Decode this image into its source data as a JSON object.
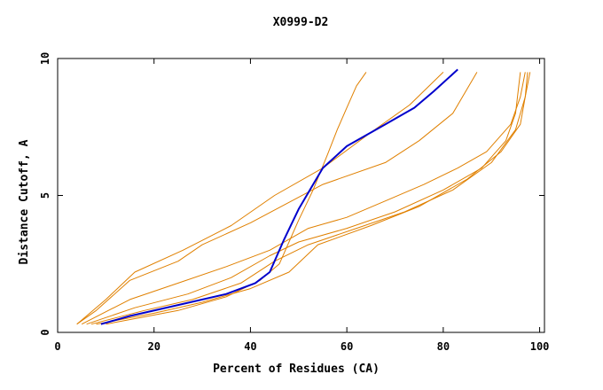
{
  "chart_data": {
    "type": "line",
    "title": "X0999-D2",
    "xlabel": "Percent of Residues (CA)",
    "ylabel": "Distance Cutoff, A",
    "xlim": [
      0,
      101
    ],
    "ylim": [
      0,
      10
    ],
    "xticks": [
      "0",
      "20",
      "40",
      "60",
      "80",
      "100"
    ],
    "yticks": [
      "0",
      "5",
      "10"
    ],
    "grid": false,
    "colors": {
      "highlight": "#0000cc",
      "other": "#e08000"
    },
    "series": [
      {
        "highlight": false,
        "points": [
          [
            4,
            0.3
          ],
          [
            8,
            0.8
          ],
          [
            15,
            1.9
          ],
          [
            25,
            2.6
          ],
          [
            30,
            3.2
          ],
          [
            40,
            4.0
          ],
          [
            55,
            5.4
          ],
          [
            68,
            6.2
          ],
          [
            75,
            7.0
          ],
          [
            82,
            8.0
          ],
          [
            87,
            9.5
          ]
        ]
      },
      {
        "highlight": false,
        "points": [
          [
            4,
            0.3
          ],
          [
            10,
            1.2
          ],
          [
            16,
            2.2
          ],
          [
            26,
            3.0
          ],
          [
            36,
            3.9
          ],
          [
            45,
            5.0
          ],
          [
            55,
            6.0
          ],
          [
            65,
            7.3
          ],
          [
            73,
            8.3
          ],
          [
            80,
            9.5
          ]
        ]
      },
      {
        "highlight": false,
        "points": [
          [
            5,
            0.3
          ],
          [
            15,
            1.2
          ],
          [
            25,
            1.8
          ],
          [
            35,
            2.4
          ],
          [
            44,
            3.0
          ],
          [
            52,
            3.8
          ],
          [
            60,
            4.2
          ],
          [
            68,
            4.8
          ],
          [
            76,
            5.4
          ],
          [
            83,
            6.0
          ],
          [
            89,
            6.6
          ],
          [
            94,
            7.6
          ],
          [
            96,
            8.6
          ],
          [
            97,
            9.5
          ]
        ]
      },
      {
        "highlight": false,
        "points": [
          [
            6,
            0.3
          ],
          [
            16,
            0.9
          ],
          [
            27,
            1.4
          ],
          [
            36,
            2.0
          ],
          [
            44,
            2.8
          ],
          [
            50,
            3.3
          ],
          [
            60,
            3.8
          ],
          [
            70,
            4.4
          ],
          [
            80,
            5.2
          ],
          [
            88,
            6.0
          ],
          [
            93,
            7.0
          ],
          [
            95,
            8.0
          ],
          [
            96,
            9.5
          ]
        ]
      },
      {
        "highlight": false,
        "points": [
          [
            7,
            0.3
          ],
          [
            18,
            0.8
          ],
          [
            28,
            1.2
          ],
          [
            38,
            1.8
          ],
          [
            45,
            2.6
          ],
          [
            52,
            3.2
          ],
          [
            62,
            3.8
          ],
          [
            72,
            4.4
          ],
          [
            82,
            5.2
          ],
          [
            90,
            6.2
          ],
          [
            95,
            7.4
          ],
          [
            97,
            8.6
          ],
          [
            97.5,
            9.5
          ]
        ]
      },
      {
        "highlight": false,
        "points": [
          [
            8,
            0.3
          ],
          [
            20,
            0.7
          ],
          [
            30,
            1.1
          ],
          [
            40,
            1.6
          ],
          [
            48,
            2.2
          ],
          [
            54,
            3.2
          ],
          [
            65,
            3.9
          ],
          [
            75,
            4.6
          ],
          [
            85,
            5.6
          ],
          [
            92,
            6.6
          ],
          [
            96,
            7.6
          ],
          [
            97,
            8.6
          ],
          [
            98,
            9.5
          ]
        ]
      },
      {
        "highlight": false,
        "points": [
          [
            10,
            0.3
          ],
          [
            25,
            0.8
          ],
          [
            35,
            1.3
          ],
          [
            42,
            1.9
          ],
          [
            46,
            2.5
          ],
          [
            50,
            4.1
          ],
          [
            53,
            5.2
          ],
          [
            56,
            6.5
          ],
          [
            58,
            7.4
          ],
          [
            60,
            8.2
          ],
          [
            62,
            9.0
          ],
          [
            64,
            9.5
          ]
        ]
      },
      {
        "highlight": true,
        "points": [
          [
            9,
            0.3
          ],
          [
            15,
            0.6
          ],
          [
            25,
            1.0
          ],
          [
            35,
            1.4
          ],
          [
            41,
            1.8
          ],
          [
            44,
            2.2
          ],
          [
            47,
            3.4
          ],
          [
            50,
            4.5
          ],
          [
            53,
            5.4
          ],
          [
            55,
            6.0
          ],
          [
            60,
            6.8
          ],
          [
            68,
            7.6
          ],
          [
            74,
            8.2
          ],
          [
            78,
            8.8
          ],
          [
            83,
            9.6
          ]
        ]
      }
    ]
  }
}
